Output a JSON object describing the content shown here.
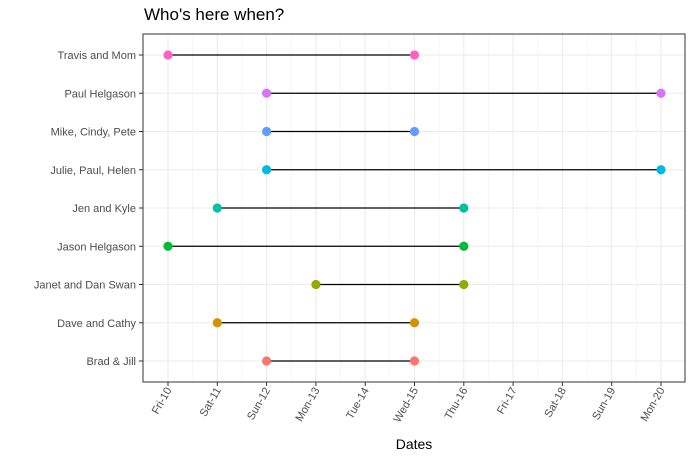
{
  "chart_data": {
    "type": "dumbbell",
    "title": "Who's here when?",
    "xlabel": "Dates",
    "ylabel": "",
    "x_ticks": [
      "Fri-10",
      "Sat-11",
      "Sun-12",
      "Mon-13",
      "Tue-14",
      "Wed-15",
      "Thu-16",
      "Fri-17",
      "Sat-18",
      "Sun-19",
      "Mon-20"
    ],
    "xlim": [
      "Fri-10",
      "Mon-20"
    ],
    "grid": true,
    "legend": "none",
    "series": [
      {
        "category": "Brad & Jill",
        "start": "Sun-12",
        "end": "Wed-15",
        "color": "#F8766D"
      },
      {
        "category": "Dave and Cathy",
        "start": "Sat-11",
        "end": "Wed-15",
        "color": "#D39200"
      },
      {
        "category": "Janet and Dan Swan",
        "start": "Mon-13",
        "end": "Thu-16",
        "color": "#93AA00"
      },
      {
        "category": "Jason Helgason",
        "start": "Fri-10",
        "end": "Thu-16",
        "color": "#00BA38"
      },
      {
        "category": "Jen and Kyle",
        "start": "Sat-11",
        "end": "Thu-16",
        "color": "#00C19F"
      },
      {
        "category": "Julie, Paul, Helen",
        "start": "Sun-12",
        "end": "Mon-20",
        "color": "#00B9E3"
      },
      {
        "category": "Mike, Cindy, Pete",
        "start": "Sun-12",
        "end": "Wed-15",
        "color": "#619CFF"
      },
      {
        "category": "Paul Helgason",
        "start": "Sun-12",
        "end": "Mon-20",
        "color": "#DB72FB"
      },
      {
        "category": "Travis and Mom",
        "start": "Fri-10",
        "end": "Wed-15",
        "color": "#FF61C3"
      }
    ]
  }
}
